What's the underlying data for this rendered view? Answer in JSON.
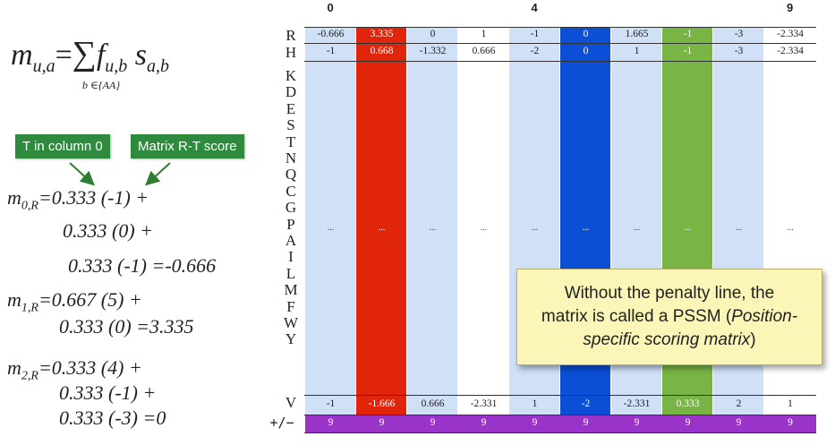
{
  "formula": {
    "lhs": "m",
    "lhs_sub": "u,a",
    "eq": "=",
    "sum": "∑",
    "f": "f",
    "f_sub": "u,b",
    "s": "s",
    "s_sub": "a,b",
    "sum_range": "b ∈{AA}"
  },
  "tags": {
    "left": "T in column 0",
    "right": "Matrix R-T score"
  },
  "equations": [
    {
      "m_sub": "0,R",
      "text": "=0.333 (-1) +"
    },
    {
      "line": "0.333 (0) +"
    },
    {
      "line": "0.333 (-1) =-0.666"
    },
    {
      "m_sub": "1,R",
      "text": "=0.667 (5) +"
    },
    {
      "line": "0.333 (0) =3.335"
    },
    {
      "m_sub": "2,R",
      "text": "=0.333 (4) +"
    },
    {
      "line": "0.333 (-1) +"
    },
    {
      "line": "0.333 (-3) =0"
    }
  ],
  "column_labels": {
    "c0": "0",
    "c4": "4",
    "c9": "9"
  },
  "row_labels": [
    "R",
    "H",
    "K",
    "D",
    "E",
    "S",
    "T",
    "N",
    "Q",
    "C",
    "G",
    "P",
    "A",
    "I",
    "L",
    "M",
    "F",
    "W",
    "Y",
    "V"
  ],
  "penalty_label": "+/−",
  "rows": {
    "R": [
      "-0.666",
      "3.335",
      "0",
      "1",
      "-1",
      "0",
      "1.665",
      "-1",
      "-3",
      "-2.334"
    ],
    "H": [
      "-1",
      "0.668",
      "-1.332",
      "0.666",
      "-2",
      "0",
      "1",
      "-1",
      "-3",
      "-2.334"
    ],
    "G": [
      "...",
      "...",
      "...",
      "...",
      "...",
      "...",
      "...",
      "...",
      "...",
      "..."
    ],
    "V": [
      "-1",
      "-1.666",
      "0.666",
      "-2.331",
      "1",
      "-2",
      "-2.331",
      "0.333",
      "2",
      "1"
    ],
    "penalty": [
      "9",
      "9",
      "9",
      "9",
      "9",
      "9",
      "9",
      "9",
      "9",
      "9"
    ]
  },
  "callout": {
    "line1": "Without the penalty line, the",
    "line2a": "matrix is called a PSSM (",
    "line2b": "Position-",
    "line3a": "specific scoring matrix",
    "line3b": ")"
  },
  "colors": {
    "light_blue": "#cfe0f7",
    "red": "#e0250a",
    "blue": "#0a4fd6",
    "green": "#79b545",
    "purple": "#9a33c8"
  }
}
